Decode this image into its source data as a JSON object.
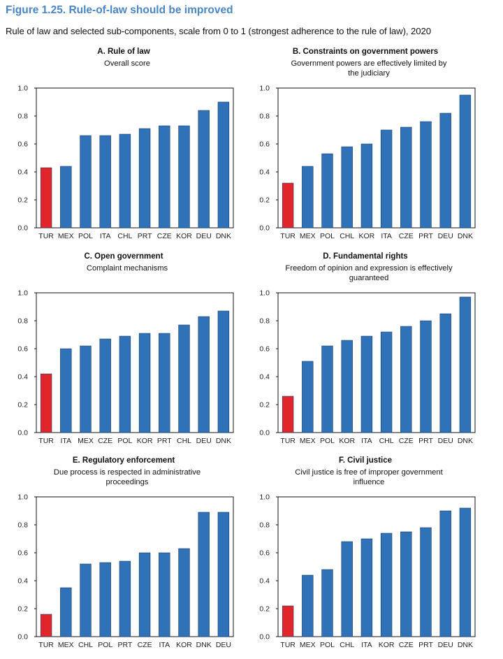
{
  "figure": {
    "title": "Figure 1.25. Rule-of-law should be improved",
    "subtitle": "Rule of law and selected sub-components, scale from 0 to 1 (strongest adherence to the rule of law), 2020"
  },
  "colors": {
    "highlight": "#e0262b",
    "bar": "#2f72b8",
    "axis": "#555555",
    "frame": "#111111"
  },
  "chart_data": [
    {
      "type": "bar",
      "title": "A. Rule of law",
      "subtitle": "Overall score",
      "categories": [
        "TUR",
        "MEX",
        "POL",
        "ITA",
        "CHL",
        "PRT",
        "CZE",
        "KOR",
        "DEU",
        "DNK"
      ],
      "values": [
        0.43,
        0.44,
        0.66,
        0.66,
        0.67,
        0.71,
        0.73,
        0.73,
        0.84,
        0.9
      ],
      "highlight": "TUR",
      "ylim": [
        0,
        1.0
      ],
      "yticks": [
        "0.0",
        "0.2",
        "0.4",
        "0.6",
        "0.8",
        "1.0"
      ]
    },
    {
      "type": "bar",
      "title": "B. Constraints on government powers",
      "subtitle": "Government powers are effectively limited by the judiciary",
      "categories": [
        "TUR",
        "MEX",
        "POL",
        "CHL",
        "KOR",
        "ITA",
        "CZE",
        "PRT",
        "DEU",
        "DNK"
      ],
      "values": [
        0.32,
        0.44,
        0.53,
        0.58,
        0.6,
        0.7,
        0.72,
        0.76,
        0.82,
        0.95
      ],
      "highlight": "TUR",
      "ylim": [
        0,
        1.0
      ],
      "yticks": [
        "0.0",
        "0.2",
        "0.4",
        "0.6",
        "0.8",
        "1.0"
      ]
    },
    {
      "type": "bar",
      "title": "C. Open government",
      "subtitle": "Complaint mechanisms",
      "categories": [
        "TUR",
        "ITA",
        "MEX",
        "CZE",
        "POL",
        "KOR",
        "PRT",
        "CHL",
        "DEU",
        "DNK"
      ],
      "values": [
        0.42,
        0.6,
        0.62,
        0.67,
        0.69,
        0.71,
        0.71,
        0.77,
        0.83,
        0.87
      ],
      "highlight": "TUR",
      "ylim": [
        0,
        1.0
      ],
      "yticks": [
        "0.0",
        "0.2",
        "0.4",
        "0.6",
        "0.8",
        "1.0"
      ]
    },
    {
      "type": "bar",
      "title": "D. Fundamental rights",
      "subtitle": "Freedom of opinion and expression is effectively guaranteed",
      "categories": [
        "TUR",
        "MEX",
        "POL",
        "KOR",
        "ITA",
        "CHL",
        "CZE",
        "PRT",
        "DEU",
        "DNK"
      ],
      "values": [
        0.26,
        0.51,
        0.62,
        0.66,
        0.69,
        0.72,
        0.76,
        0.8,
        0.85,
        0.97
      ],
      "highlight": "TUR",
      "ylim": [
        0,
        1.0
      ],
      "yticks": [
        "0.0",
        "0.2",
        "0.4",
        "0.6",
        "0.8",
        "1.0"
      ]
    },
    {
      "type": "bar",
      "title": "E. Regulatory enforcement",
      "subtitle": "Due process is respected in administrative proceedings",
      "categories": [
        "TUR",
        "MEX",
        "CHL",
        "POL",
        "PRT",
        "CZE",
        "ITA",
        "KOR",
        "DNK",
        "DEU"
      ],
      "values": [
        0.16,
        0.35,
        0.52,
        0.53,
        0.54,
        0.6,
        0.6,
        0.63,
        0.89,
        0.89
      ],
      "highlight": "TUR",
      "ylim": [
        0,
        1.0
      ],
      "yticks": [
        "0.0",
        "0.2",
        "0.4",
        "0.6",
        "0.8",
        "1.0"
      ]
    },
    {
      "type": "bar",
      "title": "F. Civil justice",
      "subtitle": "Civil justice is free of improper government influence",
      "categories": [
        "TUR",
        "MEX",
        "POL",
        "CHL",
        "ITA",
        "KOR",
        "CZE",
        "PRT",
        "DEU",
        "DNK"
      ],
      "values": [
        0.22,
        0.44,
        0.48,
        0.68,
        0.7,
        0.74,
        0.75,
        0.78,
        0.9,
        0.92
      ],
      "highlight": "TUR",
      "ylim": [
        0,
        1.0
      ],
      "yticks": [
        "0.0",
        "0.2",
        "0.4",
        "0.6",
        "0.8",
        "1.0"
      ]
    }
  ]
}
